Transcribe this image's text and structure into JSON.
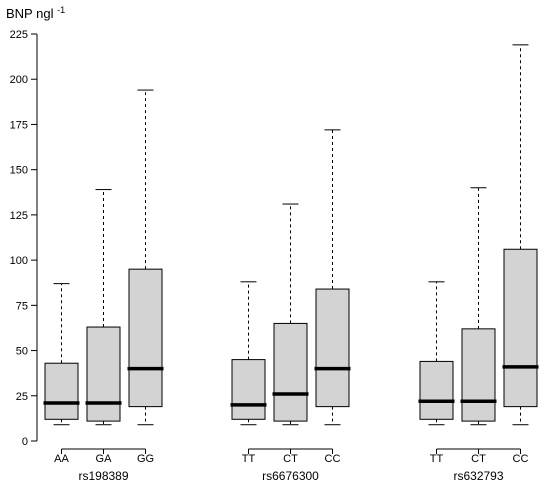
{
  "chart_data": {
    "type": "box",
    "ylabel_base": "BNP ngl",
    "ylabel_sup": "-1",
    "ylim": [
      0,
      225
    ],
    "yticks": [
      "0",
      "25",
      "50",
      "75",
      "100",
      "125",
      "150",
      "175",
      "200",
      "225"
    ],
    "grid": false,
    "groups": [
      {
        "name": "rs198389",
        "boxes": [
          {
            "label": "AA",
            "min": 9,
            "q1": 12,
            "median": 21,
            "q3": 43,
            "max": 87
          },
          {
            "label": "GA",
            "min": 9,
            "q1": 11,
            "median": 21,
            "q3": 63,
            "max": 139
          },
          {
            "label": "GG",
            "min": 9,
            "q1": 19,
            "median": 40,
            "q3": 95,
            "max": 194
          }
        ]
      },
      {
        "name": "rs6676300",
        "boxes": [
          {
            "label": "TT",
            "min": 9,
            "q1": 12,
            "median": 20,
            "q3": 45,
            "max": 88
          },
          {
            "label": "CT",
            "min": 9,
            "q1": 11,
            "median": 26,
            "q3": 65,
            "max": 131
          },
          {
            "label": "CC",
            "min": 9,
            "q1": 19,
            "median": 40,
            "q3": 84,
            "max": 172
          }
        ]
      },
      {
        "name": "rs632793",
        "boxes": [
          {
            "label": "TT",
            "min": 9,
            "q1": 12,
            "median": 22,
            "q3": 44,
            "max": 88
          },
          {
            "label": "CT",
            "min": 9,
            "q1": 11,
            "median": 22,
            "q3": 62,
            "max": 140
          },
          {
            "label": "CC",
            "min": 9,
            "q1": 19,
            "median": 41,
            "q3": 106,
            "max": 219
          }
        ]
      }
    ]
  }
}
